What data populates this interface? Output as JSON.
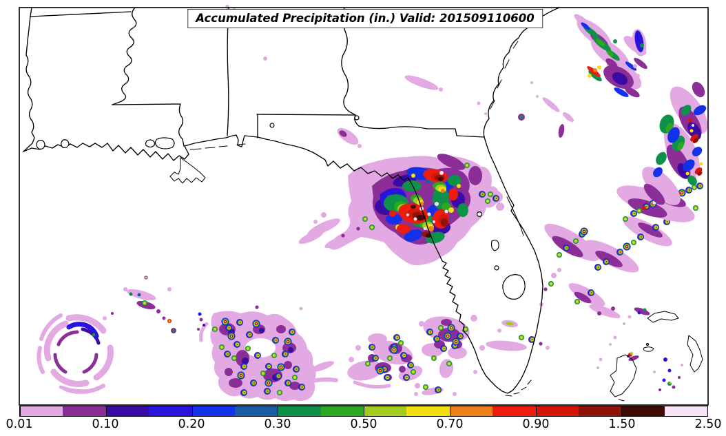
{
  "title": "Accumulated Precipitation (in.) Valid: 201509110600",
  "figure": {
    "background_color": "#ffffff",
    "frame_color": "#000000",
    "border_line_color": "#000000"
  },
  "colorbar": {
    "orientation": "horizontal",
    "position": "bottom",
    "tick_labels": [
      "0.01",
      "0.10",
      "0.20",
      "0.30",
      "0.50",
      "0.70",
      "0.90",
      "1.50",
      "2.50"
    ],
    "segments_per_tick_interval": 2,
    "segment_colors": [
      "#e2a9e2",
      "#8b2e97",
      "#3a0ba5",
      "#2a14dc",
      "#1331e8",
      "#175da4",
      "#0e9148",
      "#2aa81f",
      "#a2cc20",
      "#f0e010",
      "#ef7f1a",
      "#ee1c0c",
      "#d51507",
      "#8f1407",
      "#420a04",
      "#f7e3f7"
    ]
  },
  "chart_data": {
    "type": "heatmap",
    "title": "Accumulated Precipitation (in.) Valid: 201509110600",
    "variable": "accumulated precipitation",
    "units": "in.",
    "valid_time": "201509110600",
    "legend_position": "bottom",
    "colorbar_tick_values": [
      0.01,
      0.1,
      0.2,
      0.3,
      0.5,
      0.7,
      0.9,
      1.5,
      2.5
    ],
    "colorbar_colors": [
      "#e2a9e2",
      "#8b2e97",
      "#3a0ba5",
      "#2a14dc",
      "#1331e8",
      "#175da4",
      "#0e9148",
      "#2aa81f",
      "#a2cc20",
      "#f0e010",
      "#ef7f1a",
      "#ee1c0c",
      "#d51507",
      "#8f1407",
      "#420a04",
      "#f7e3f7"
    ],
    "map_extent_description": "Southeastern United States: Louisiana, Mississippi, Alabama, Georgia, Florida, Gulf of Mexico, Atlantic waters and northwestern Bahamas",
    "precipitation_features": [
      {
        "name": "tropical-cyclone-spiral",
        "location": "southwestern Gulf of Mexico (lower left)",
        "peak_value_in": 0.25,
        "description": "spiral rainbands with a clear central eye"
      },
      {
        "name": "florida-big-bend-complex",
        "location": "Florida Big Bend / Nature Coast",
        "peak_value_in": 2.5,
        "description": "large intense storm complex with cores above 2.0 in (pale cores)"
      },
      {
        "name": "southern-gulf-scattered-convection",
        "location": "open Gulf south of the Florida panhandle",
        "peak_value_in": 2.5,
        "description": "clusters of many small intense convective cells"
      },
      {
        "name": "atlantic-squall-bands",
        "location": "Atlantic off the Georgia and Florida east coasts",
        "peak_value_in": 1.5,
        "description": "NE-SW oriented rain bands with embedded strong cells"
      },
      {
        "name": "bahamas-isolated-cells",
        "location": "near Grand Bahama, Abaco and Andros",
        "peak_value_in": 0.9,
        "description": "isolated weak to moderate cells"
      },
      {
        "name": "inland-light-streaks",
        "location": "inland Georgia and Alabama",
        "peak_value_in": 0.1,
        "description": "thin light precipitation streaks"
      }
    ]
  }
}
